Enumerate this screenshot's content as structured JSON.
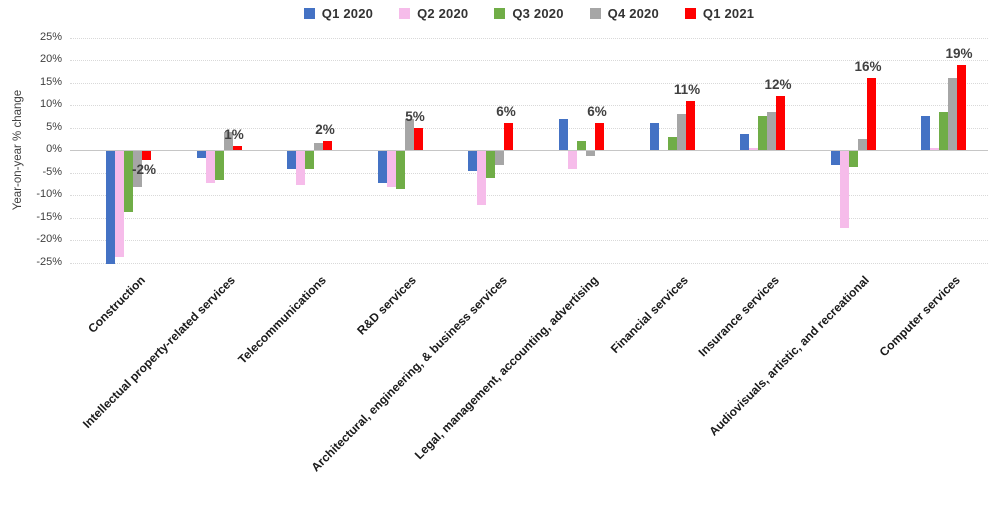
{
  "chart_data": {
    "type": "bar",
    "title": "",
    "ylabel": "Year-on-year % change",
    "ylim": [
      -25,
      25
    ],
    "ytick_step": 5,
    "yticks": [
      {
        "value": 25,
        "label": "25%"
      },
      {
        "value": 20,
        "label": "20%"
      },
      {
        "value": 15,
        "label": "15%"
      },
      {
        "value": 10,
        "label": "10%"
      },
      {
        "value": 5,
        "label": "5%"
      },
      {
        "value": 0,
        "label": "0%"
      },
      {
        "value": -5,
        "label": "-5%"
      },
      {
        "value": -10,
        "label": "-10%"
      },
      {
        "value": -15,
        "label": "-15%"
      },
      {
        "value": -20,
        "label": "-20%"
      },
      {
        "value": -25,
        "label": "-25%"
      }
    ],
    "grid": true,
    "legend_position": "top",
    "categories": [
      "Construction",
      "Intellectual property-related services",
      "Telecommunications",
      "R&D services",
      "Architectural, engineering, & business services",
      "Legal, management, accounting, advertising",
      "Financial services",
      "Insurance services",
      "Audiovisuals, artistic, and recreational",
      "Computer services"
    ],
    "series": [
      {
        "name": "Q1 2020",
        "color": "#4472C4",
        "values": [
          -25,
          -1.5,
          -4,
          -7,
          -4.5,
          7,
          6,
          3.5,
          -3,
          7.5
        ]
      },
      {
        "name": "Q2 2020",
        "color": "#F6BCEA",
        "values": [
          -23.5,
          -7,
          -7.5,
          -8,
          -12,
          -4,
          0,
          0.5,
          -17,
          0.5
        ]
      },
      {
        "name": "Q3 2020",
        "color": "#70AD47",
        "values": [
          -13.5,
          -6.5,
          -4,
          -8.5,
          -6,
          2,
          3,
          7.5,
          -3.5,
          8.5
        ]
      },
      {
        "name": "Q4 2020",
        "color": "#A6A6A6",
        "values": [
          -8,
          4,
          1.5,
          7,
          -3,
          -1,
          8,
          8.5,
          2.5,
          16
        ]
      },
      {
        "name": "Q1 2021",
        "color": "#FF0000",
        "values": [
          -2,
          1,
          2,
          5,
          6,
          6,
          11,
          12,
          16,
          19
        ],
        "data_labels": [
          "-2%",
          "1%",
          "2%",
          "5%",
          "6%",
          "6%",
          "11%",
          "12%",
          "16%",
          "19%"
        ]
      }
    ]
  }
}
